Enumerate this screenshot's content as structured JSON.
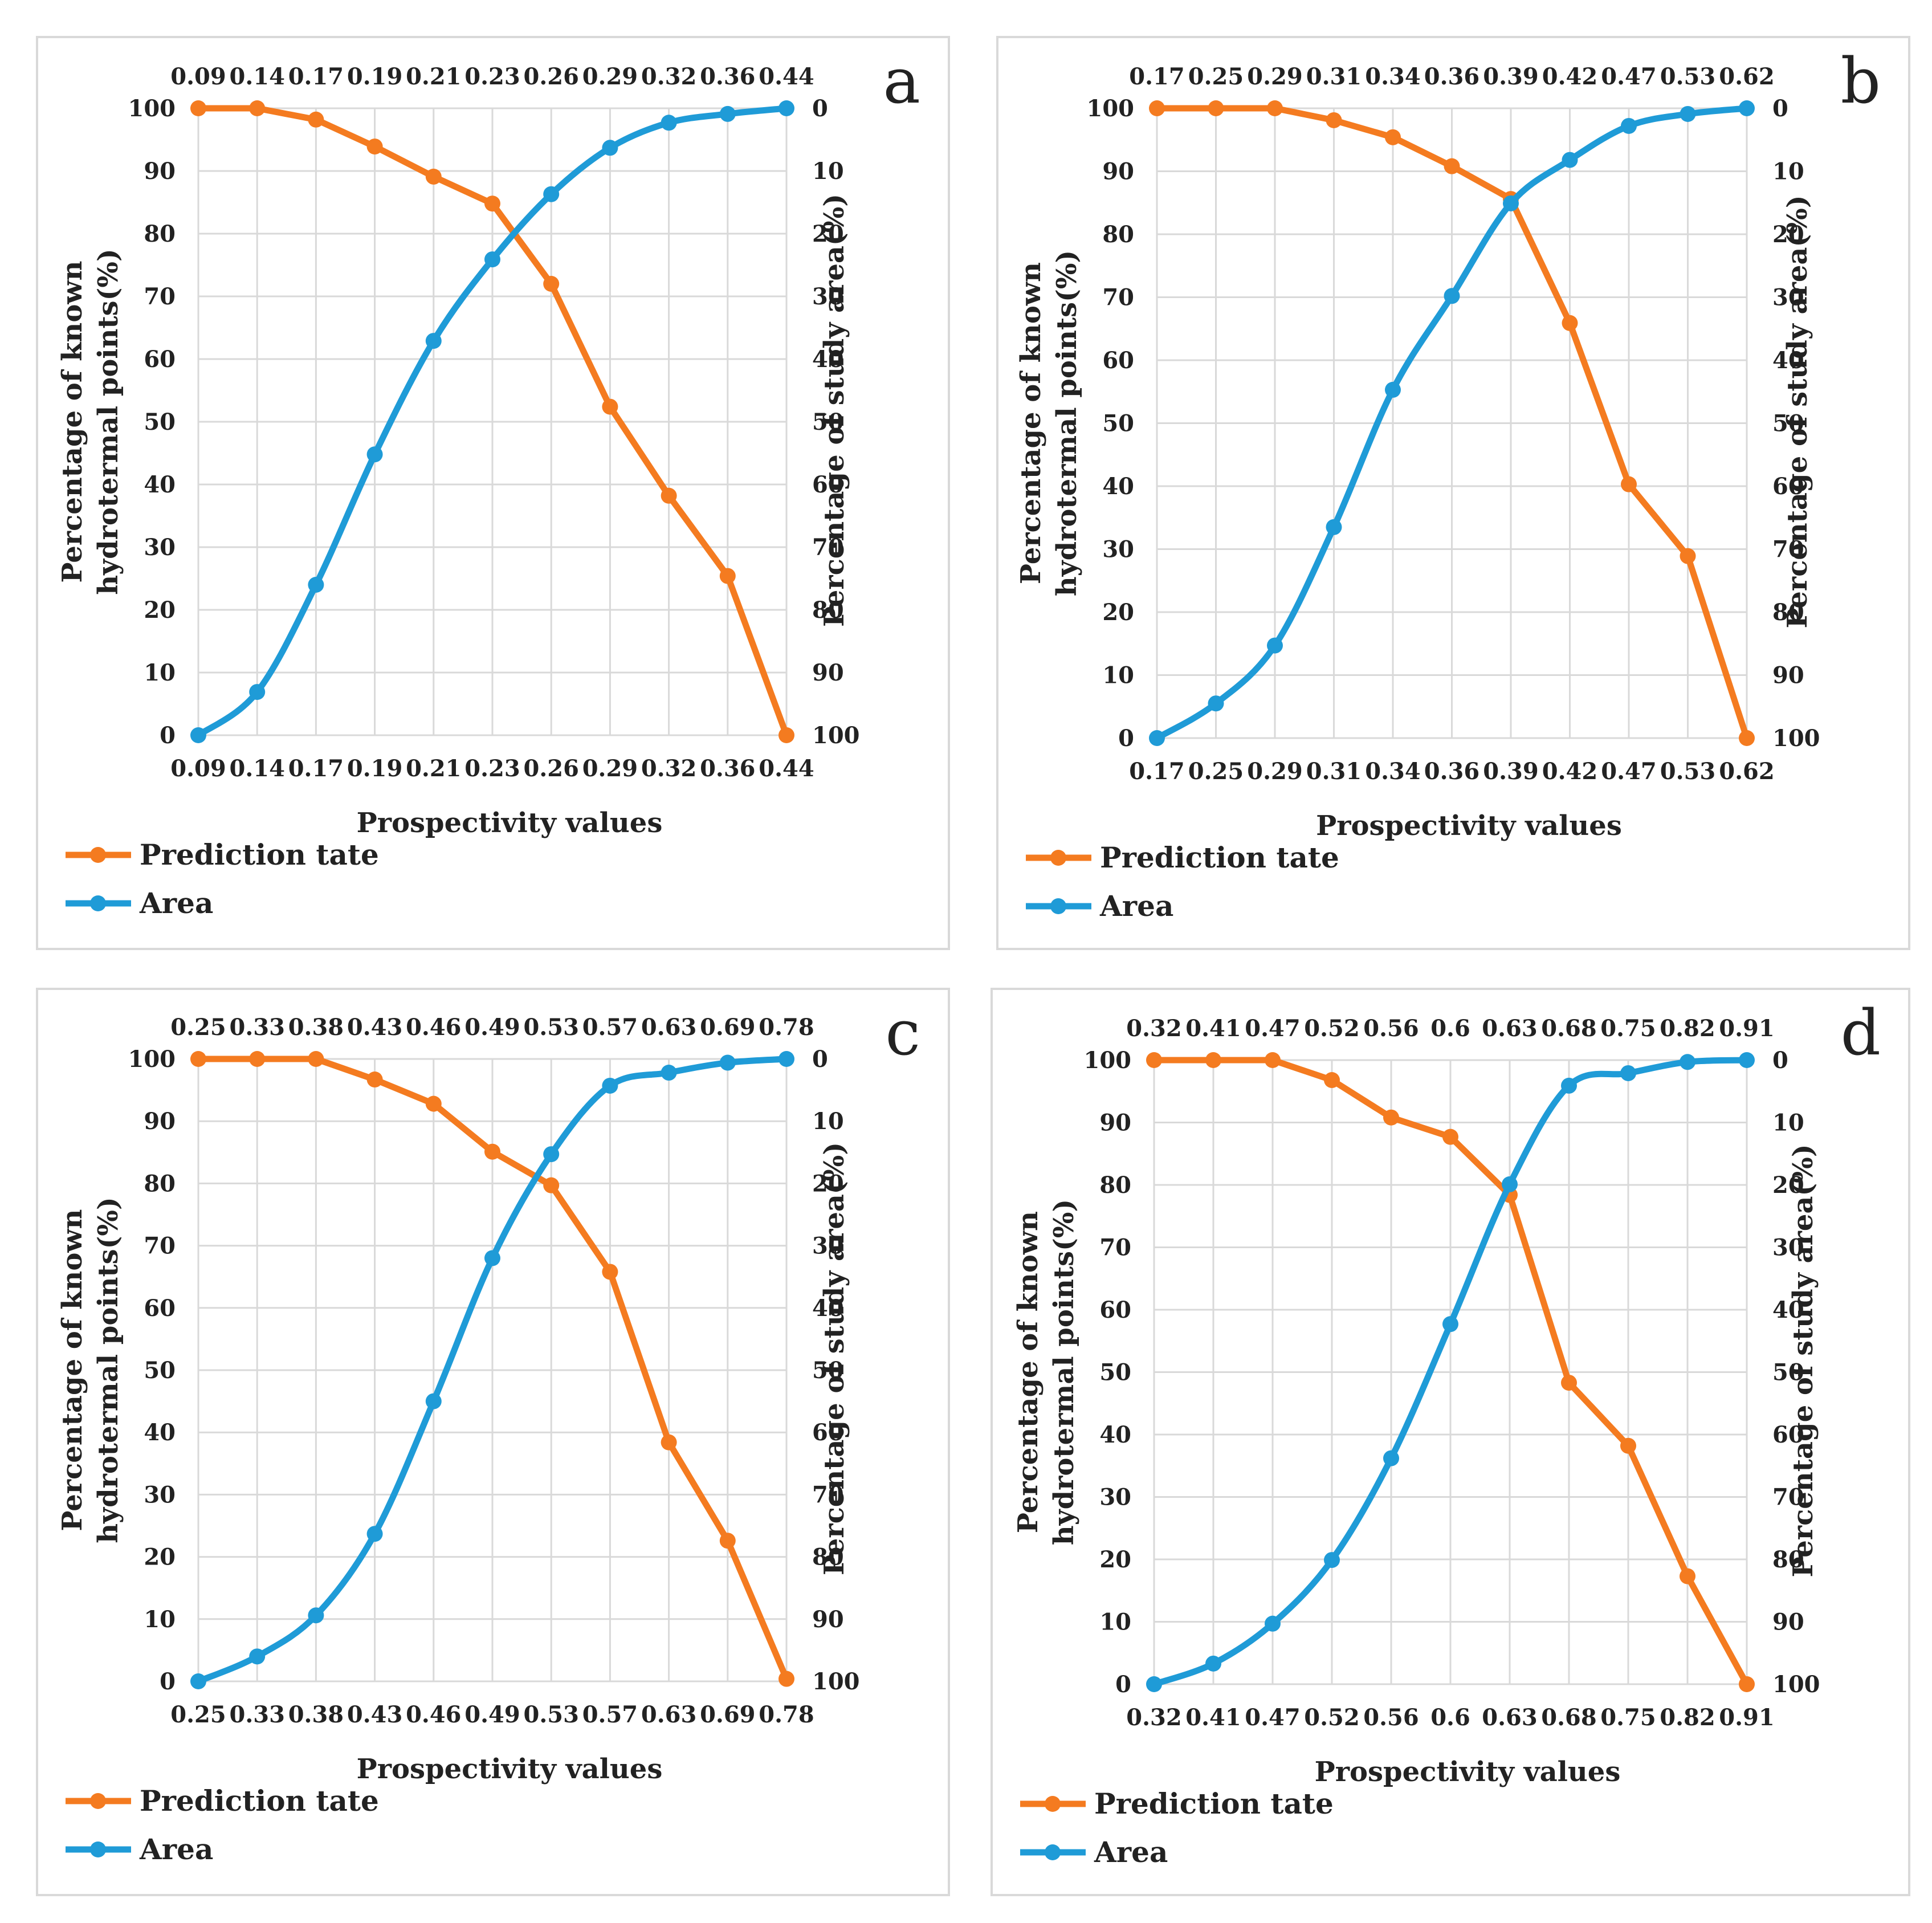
{
  "colors": {
    "prediction": "#f47b20",
    "area": "#1f9bd7"
  },
  "chart_data": [
    {
      "type": "line",
      "panel": "a",
      "categories": [
        "0.09",
        "0.14",
        "0.17",
        "0.19",
        "0.21",
        "0.23",
        "0.26",
        "0.29",
        "0.32",
        "0.36",
        "0.44"
      ],
      "series": [
        {
          "name": "Prediction tate",
          "axis": "left",
          "values": [
            100,
            100,
            98.2,
            93.9,
            89.1,
            84.8,
            72.0,
            52.4,
            38.2,
            25.4,
            0
          ]
        },
        {
          "name": "Area",
          "axis": "right",
          "smooth": true,
          "values": [
            100,
            93.1,
            76.0,
            55.2,
            37.1,
            24.1,
            13.7,
            6.3,
            2.3,
            0.9,
            0
          ]
        }
      ],
      "xlabel": "Prospectivity values",
      "ylabel_line1": "Percentage of known",
      "ylabel_line2": "hydrotermal points(%)",
      "ylabel_right": "Percentage of study area(%)",
      "ylim_left": [
        0,
        100
      ],
      "ylim_right": [
        100,
        0
      ],
      "left_ticks": [
        "0",
        "10",
        "20",
        "30",
        "40",
        "50",
        "60",
        "70",
        "80",
        "90",
        "100"
      ],
      "right_ticks": [
        "0",
        "10",
        "20",
        "30",
        "40",
        "50",
        "60",
        "70",
        "80",
        "90",
        "100"
      ],
      "legend": [
        "Prediction tate",
        "Area"
      ],
      "grid": true
    },
    {
      "type": "line",
      "panel": "b",
      "categories": [
        "0.17",
        "0.25",
        "0.29",
        "0.31",
        "0.34",
        "0.36",
        "0.39",
        "0.42",
        "0.47",
        "0.53",
        "0.62"
      ],
      "series": [
        {
          "name": "Prediction tate",
          "axis": "left",
          "values": [
            100,
            100,
            100,
            98.1,
            95.4,
            90.8,
            85.6,
            65.9,
            40.3,
            28.9,
            0
          ]
        },
        {
          "name": "Area",
          "axis": "right",
          "smooth": true,
          "values": [
            100,
            94.5,
            85.3,
            66.5,
            44.7,
            29.8,
            15.1,
            8.2,
            2.8,
            0.9,
            0
          ]
        }
      ],
      "xlabel": "Prospectivity values",
      "ylabel_line1": "Percentage of known",
      "ylabel_line2": "hydrotermal points(%)",
      "ylabel_right": "Percentage of study area(%)",
      "ylim_left": [
        0,
        100
      ],
      "ylim_right": [
        100,
        0
      ],
      "left_ticks": [
        "0",
        "10",
        "20",
        "30",
        "40",
        "50",
        "60",
        "70",
        "80",
        "90",
        "100"
      ],
      "right_ticks": [
        "0",
        "10",
        "20",
        "30",
        "40",
        "50",
        "60",
        "70",
        "80",
        "90",
        "100"
      ],
      "legend": [
        "Prediction tate",
        "Area"
      ],
      "grid": true
    },
    {
      "type": "line",
      "panel": "c",
      "categories": [
        "0.25",
        "0.33",
        "0.38",
        "0.43",
        "0.46",
        "0.49",
        "0.53",
        "0.57",
        "0.63",
        "0.69",
        "0.78"
      ],
      "series": [
        {
          "name": "Prediction tate",
          "axis": "left",
          "values": [
            100,
            100,
            100,
            96.7,
            92.8,
            85.1,
            79.7,
            65.8,
            38.4,
            22.6,
            0.4
          ]
        },
        {
          "name": "Area",
          "axis": "right",
          "smooth": true,
          "values": [
            100,
            96.0,
            89.4,
            76.3,
            55.0,
            32.0,
            15.3,
            4.3,
            2.2,
            0.6,
            0
          ]
        }
      ],
      "xlabel": "Prospectivity values",
      "ylabel_line1": "Percentage of known",
      "ylabel_line2": "hydrotermal points(%)",
      "ylabel_right": "Percentage of study area(%)",
      "ylim_left": [
        0,
        100
      ],
      "ylim_right": [
        100,
        0
      ],
      "left_ticks": [
        "0",
        "10",
        "20",
        "30",
        "40",
        "50",
        "60",
        "70",
        "80",
        "90",
        "100"
      ],
      "right_ticks": [
        "0",
        "10",
        "20",
        "30",
        "40",
        "50",
        "60",
        "70",
        "80",
        "90",
        "100"
      ],
      "legend": [
        "Prediction tate",
        "Area"
      ],
      "grid": true
    },
    {
      "type": "line",
      "panel": "d",
      "categories": [
        "0.32",
        "0.41",
        "0.47",
        "0.52",
        "0.56",
        "0.6",
        "0.63",
        "0.68",
        "0.75",
        "0.82",
        "0.91"
      ],
      "series": [
        {
          "name": "Prediction tate",
          "axis": "left",
          "values": [
            100,
            100,
            100,
            96.8,
            90.8,
            87.7,
            78.4,
            48.3,
            38.2,
            17.3,
            0
          ]
        },
        {
          "name": "Area",
          "axis": "right",
          "smooth": true,
          "values": [
            100,
            96.7,
            90.3,
            80.1,
            63.8,
            42.3,
            19.9,
            4.1,
            2.1,
            0.3,
            0
          ]
        }
      ],
      "xlabel": "Prospectivity values",
      "ylabel_line1": "Percentage of known",
      "ylabel_line2": "hydrotermal points(%)",
      "ylabel_right": "Percentage of study area(%)",
      "ylim_left": [
        0,
        100
      ],
      "ylim_right": [
        100,
        0
      ],
      "left_ticks": [
        "0",
        "10",
        "20",
        "30",
        "40",
        "50",
        "60",
        "70",
        "80",
        "90",
        "100"
      ],
      "right_ticks": [
        "0",
        "10",
        "20",
        "30",
        "40",
        "50",
        "60",
        "70",
        "80",
        "90",
        "100"
      ],
      "legend": [
        "Prediction tate",
        "Area"
      ],
      "grid": true
    }
  ]
}
